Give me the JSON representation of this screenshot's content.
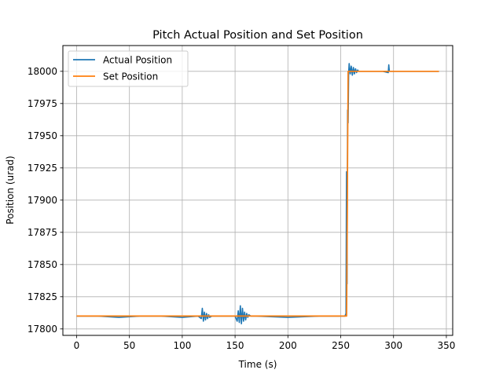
{
  "chart_data": {
    "type": "line",
    "title": "Pitch Actual Position and Set Position",
    "xlabel": "Time (s)",
    "ylabel": "Position (urad)",
    "xlim": [
      -13,
      356
    ],
    "ylim": [
      17795,
      18020
    ],
    "xticks": [
      0,
      50,
      100,
      150,
      200,
      250,
      300,
      350
    ],
    "yticks": [
      17800,
      17825,
      17850,
      17875,
      17900,
      17925,
      17950,
      17975,
      18000
    ],
    "grid": true,
    "legend_position": "top-left",
    "series": [
      {
        "name": "Actual Position",
        "color": "#1f77b4",
        "x": [
          0,
          20,
          40,
          60,
          80,
          100,
          115,
          118,
          119,
          120,
          121,
          122,
          123,
          124,
          125,
          126,
          128,
          140,
          150,
          152,
          153,
          154,
          155,
          156,
          157,
          158,
          159,
          160,
          161,
          162,
          163,
          165,
          170,
          200,
          230,
          254,
          255,
          255.5,
          256,
          256.5,
          257,
          257.5,
          258,
          259,
          260,
          261,
          262,
          263,
          264,
          265,
          266,
          267,
          268,
          270,
          280,
          290,
          295,
          295.5,
          296,
          300,
          320,
          343
        ],
        "y": [
          17810,
          17810,
          17809,
          17810,
          17810,
          17809,
          17810,
          17808,
          17816,
          17806,
          17813,
          17807,
          17812,
          17808,
          17811,
          17809,
          17810,
          17810,
          17810,
          17806,
          17814,
          17805,
          17818,
          17804,
          17816,
          17806,
          17813,
          17807,
          17812,
          17809,
          17811,
          17810,
          17810,
          17809,
          17810,
          17810,
          17812,
          17922,
          17835,
          17970,
          17960,
          17999,
          18006,
          17998,
          18004,
          17997,
          18003,
          17998,
          18002,
          17999,
          18001,
          18000,
          18000,
          18000,
          18000,
          18000,
          17999,
          18005,
          18000,
          18000,
          18000,
          18000
        ]
      },
      {
        "name": "Set Position",
        "color": "#ff7f0e",
        "x": [
          0,
          255.6,
          257,
          343
        ],
        "y": [
          17810,
          17810,
          18000,
          18000
        ]
      }
    ]
  }
}
